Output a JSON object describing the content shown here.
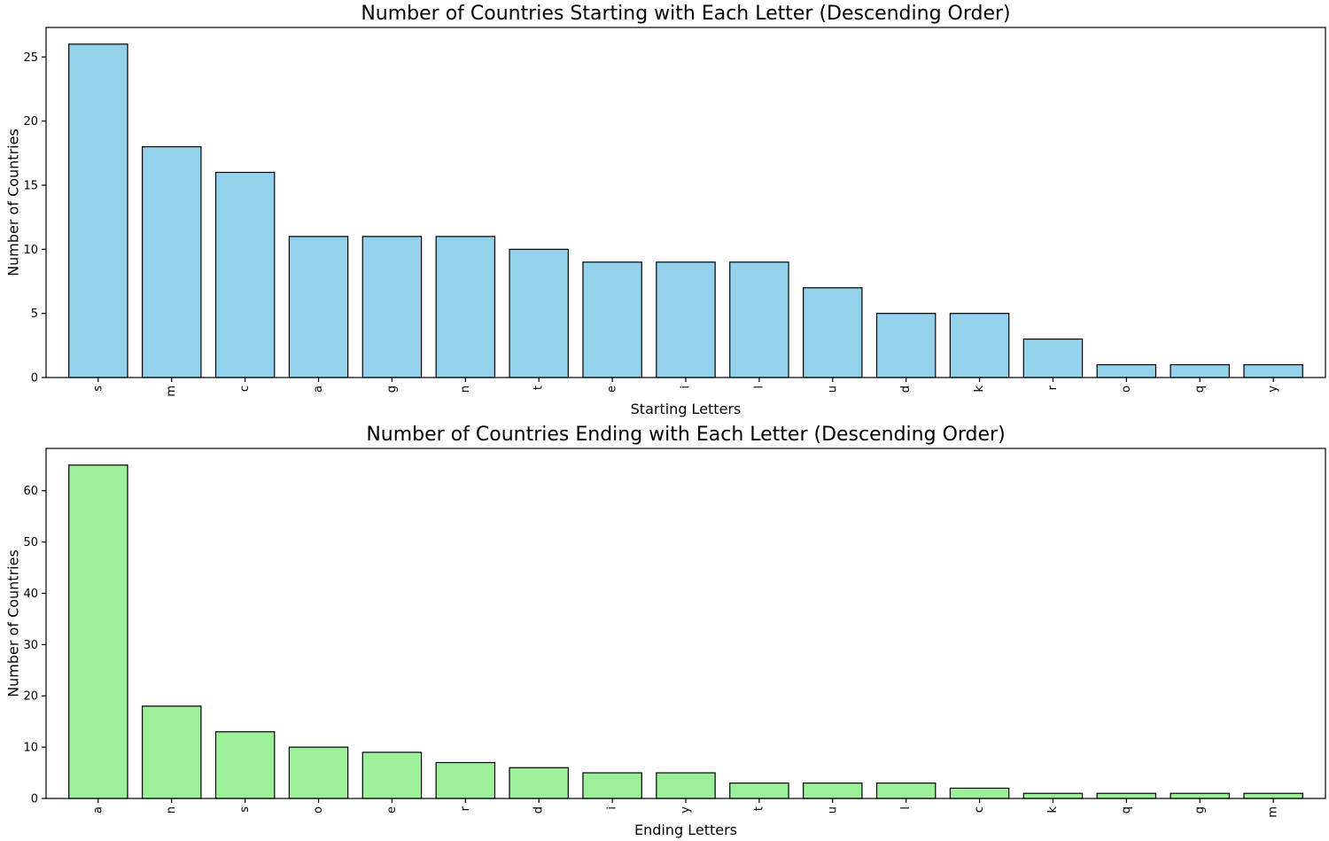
{
  "chart_data": [
    {
      "type": "bar",
      "title": "Number of Countries Starting with Each Letter (Descending Order)",
      "xlabel": "Starting Letters",
      "ylabel": "Number of Countries",
      "categories": [
        "s",
        "m",
        "c",
        "a",
        "g",
        "n",
        "t",
        "e",
        "i",
        "l",
        "u",
        "d",
        "k",
        "r",
        "o",
        "q",
        "y"
      ],
      "values": [
        26,
        18,
        16,
        11,
        11,
        11,
        10,
        9,
        9,
        9,
        7,
        5,
        5,
        3,
        1,
        1,
        1
      ],
      "ylim": [
        0,
        27.3
      ],
      "yticks": [
        0,
        5,
        10,
        15,
        20,
        25
      ],
      "bar_color": "#93d1ec",
      "edge_color": "#000000",
      "grid": false
    },
    {
      "type": "bar",
      "title": "Number of Countries Ending with Each Letter (Descending Order)",
      "xlabel": "Ending Letters",
      "ylabel": "Number of Countries",
      "categories": [
        "a",
        "n",
        "s",
        "o",
        "e",
        "r",
        "d",
        "i",
        "y",
        "t",
        "u",
        "l",
        "c",
        "k",
        "q",
        "g",
        "m"
      ],
      "values": [
        65,
        18,
        13,
        10,
        9,
        7,
        6,
        5,
        5,
        3,
        3,
        3,
        2,
        1,
        1,
        1,
        1
      ],
      "ylim": [
        0,
        68.25
      ],
      "yticks": [
        0,
        10,
        20,
        30,
        40,
        50,
        60
      ],
      "bar_color": "#9cf09a",
      "edge_color": "#000000",
      "grid": false
    }
  ]
}
